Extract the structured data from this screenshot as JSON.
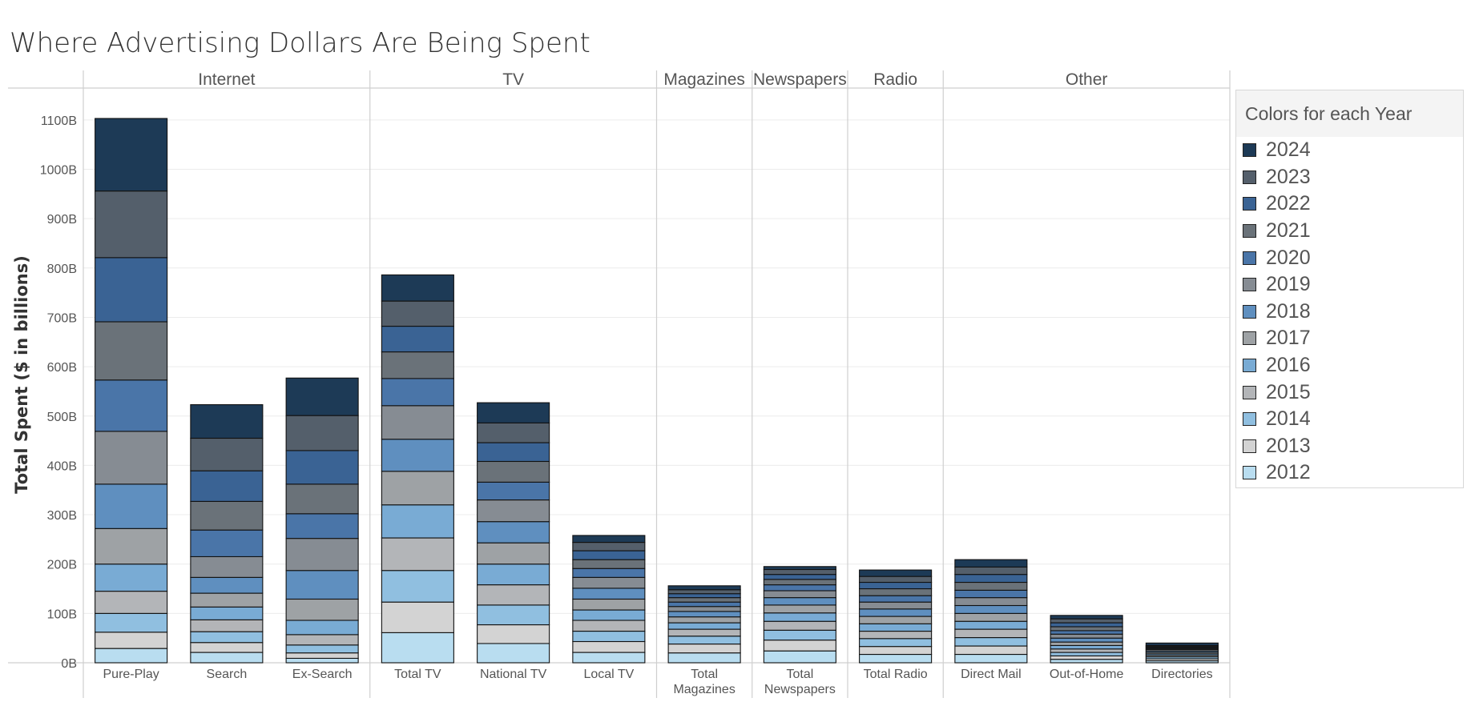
{
  "chart_data": {
    "type": "bar",
    "stacked": true,
    "title": "Where Advertising Dollars Are Being Spent",
    "ylabel": "Total Spent ($ in billions)",
    "ylim": [
      0,
      1150
    ],
    "yticks": [
      "0B",
      "100B",
      "200B",
      "300B",
      "400B",
      "500B",
      "600B",
      "700B",
      "800B",
      "900B",
      "1000B",
      "1100B"
    ],
    "ytick_values": [
      0,
      100,
      200,
      300,
      400,
      500,
      600,
      700,
      800,
      900,
      1000,
      1100
    ],
    "grid": true,
    "legend_title": "Colors for each Year",
    "legend_position": "right",
    "groups": [
      {
        "name": "Internet",
        "categories": [
          "Pure-Play",
          "Search",
          "Ex-Search"
        ]
      },
      {
        "name": "TV",
        "categories": [
          "Total TV",
          "National TV",
          "Local TV"
        ]
      },
      {
        "name": "Magazines",
        "categories": [
          "Total\nMagazines"
        ]
      },
      {
        "name": "Newspapers",
        "categories": [
          "Total\nNewspapers"
        ]
      },
      {
        "name": "Radio",
        "categories": [
          "Total Radio"
        ]
      },
      {
        "name": "Other",
        "categories": [
          "Direct Mail",
          "Out-of-Home",
          "Directories"
        ]
      }
    ],
    "categories": [
      "Pure-Play",
      "Search",
      "Ex-Search",
      "Total TV",
      "National TV",
      "Local TV",
      "Total Magazines",
      "Total Newspapers",
      "Total Radio",
      "Direct Mail",
      "Out-of-Home",
      "Directories"
    ],
    "series": [
      {
        "name": "2012",
        "color": "#b9ddf0",
        "values": [
          29,
          21,
          9,
          61,
          39,
          21,
          20,
          24,
          17,
          17,
          7,
          4
        ]
      },
      {
        "name": "2013",
        "color": "#d3d3d3",
        "values": [
          33,
          20,
          11,
          62,
          38,
          22,
          18,
          22,
          16,
          17,
          7,
          4
        ]
      },
      {
        "name": "2014",
        "color": "#90bfe0",
        "values": [
          38,
          22,
          16,
          64,
          40,
          21,
          16,
          20,
          16,
          17,
          7,
          4
        ]
      },
      {
        "name": "2015",
        "color": "#b3b5b8",
        "values": [
          45,
          24,
          21,
          66,
          41,
          22,
          14,
          18,
          15,
          17,
          7,
          3
        ]
      },
      {
        "name": "2016",
        "color": "#79abd4",
        "values": [
          55,
          26,
          29,
          67,
          42,
          21,
          13,
          17,
          15,
          16,
          7,
          3
        ]
      },
      {
        "name": "2017",
        "color": "#9ea2a5",
        "values": [
          72,
          28,
          43,
          68,
          43,
          22,
          12,
          16,
          15,
          16,
          7,
          3
        ]
      },
      {
        "name": "2018",
        "color": "#5f8fbf",
        "values": [
          90,
          32,
          58,
          65,
          43,
          22,
          11,
          15,
          15,
          16,
          8,
          3
        ]
      },
      {
        "name": "2019",
        "color": "#868c93",
        "values": [
          107,
          42,
          65,
          68,
          44,
          22,
          10,
          14,
          14,
          16,
          8,
          3
        ]
      },
      {
        "name": "2020",
        "color": "#4a75a8",
        "values": [
          104,
          54,
          50,
          55,
          36,
          18,
          9,
          12,
          13,
          15,
          7,
          2
        ]
      },
      {
        "name": "2021",
        "color": "#6a7279",
        "values": [
          118,
          58,
          60,
          54,
          42,
          18,
          9,
          11,
          14,
          16,
          8,
          2
        ]
      },
      {
        "name": "2022",
        "color": "#3a6394",
        "values": [
          130,
          62,
          68,
          52,
          38,
          18,
          8,
          10,
          13,
          16,
          8,
          2
        ]
      },
      {
        "name": "2023",
        "color": "#545f6b",
        "values": [
          135,
          66,
          71,
          51,
          40,
          17,
          8,
          10,
          12,
          15,
          8,
          2
        ]
      },
      {
        "name": "2024",
        "color": "#1d3a56",
        "values": [
          147,
          68,
          76,
          53,
          41,
          14,
          8,
          6,
          13,
          15,
          7,
          5
        ]
      }
    ]
  }
}
